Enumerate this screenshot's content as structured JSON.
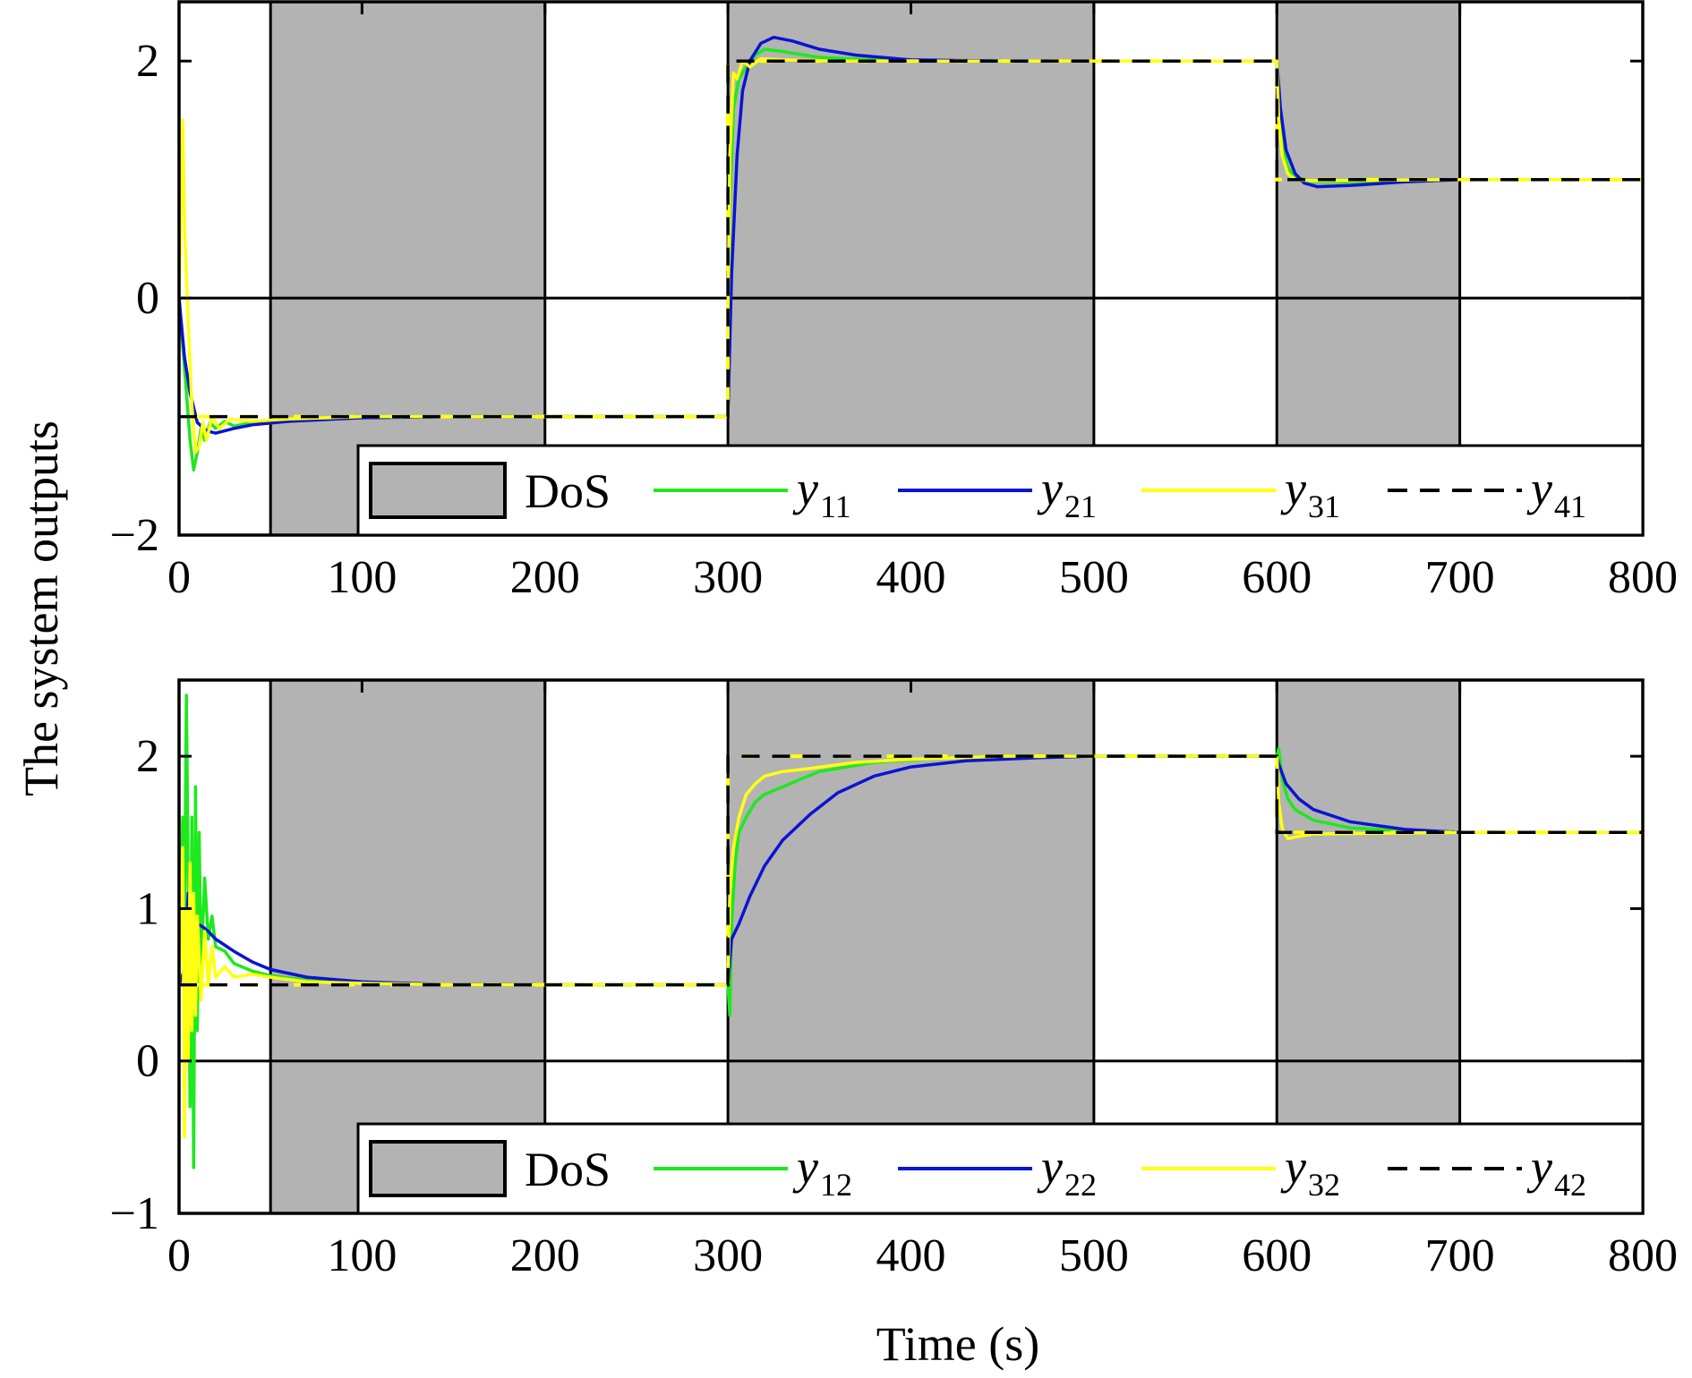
{
  "figure": {
    "ylabel": "The system outputs",
    "xlabel": "Time (s)"
  },
  "colors": {
    "dos_fill": "#b3b3b3",
    "green": "#1ee81e",
    "blue": "#0a14d2",
    "yellow": "#ffff14",
    "black": "#000000"
  },
  "chart_data": [
    {
      "type": "line",
      "panel": "top",
      "xlim": [
        0,
        800
      ],
      "ylim": [
        -2,
        2.5
      ],
      "xticks": [
        0,
        100,
        200,
        300,
        400,
        500,
        600,
        700,
        800
      ],
      "yticks": [
        -2,
        0,
        2
      ],
      "ytick_labels": [
        "−2",
        "0",
        "2"
      ],
      "zero_line": true,
      "dos_intervals": [
        [
          50,
          200
        ],
        [
          300,
          500
        ],
        [
          600,
          700
        ]
      ],
      "legend": {
        "placement": "bottom-right",
        "entries": [
          {
            "label": "DoS",
            "kind": "patch",
            "color_key": "dos_fill"
          },
          {
            "label": "y",
            "sub": "11",
            "kind": "line",
            "color_key": "green"
          },
          {
            "label": "y",
            "sub": "21",
            "kind": "line",
            "color_key": "blue"
          },
          {
            "label": "y",
            "sub": "31",
            "kind": "line",
            "color_key": "yellow"
          },
          {
            "label": "y",
            "sub": "41",
            "kind": "dashed",
            "color_key": "black"
          }
        ]
      },
      "series": [
        {
          "name": "y11",
          "color_key": "green",
          "points": [
            [
              0,
              0
            ],
            [
              2,
              -0.4
            ],
            [
              4,
              -0.8
            ],
            [
              6,
              -1.2
            ],
            [
              8,
              -1.45
            ],
            [
              10,
              -1.3
            ],
            [
              12,
              -1.1
            ],
            [
              14,
              -1.2
            ],
            [
              17,
              -1.05
            ],
            [
              20,
              -1.1
            ],
            [
              25,
              -1.04
            ],
            [
              30,
              -1.08
            ],
            [
              40,
              -1.05
            ],
            [
              60,
              -1.03
            ],
            [
              100,
              -1.01
            ],
            [
              150,
              -1.0
            ],
            [
              300,
              -1.0
            ],
            [
              300,
              -0.3
            ],
            [
              301,
              0.8
            ],
            [
              303,
              1.6
            ],
            [
              306,
              1.85
            ],
            [
              310,
              1.95
            ],
            [
              315,
              2.05
            ],
            [
              320,
              2.1
            ],
            [
              330,
              2.08
            ],
            [
              350,
              2.03
            ],
            [
              380,
              2.01
            ],
            [
              420,
              2.0
            ],
            [
              600,
              2.0
            ],
            [
              601,
              1.6
            ],
            [
              603,
              1.3
            ],
            [
              606,
              1.1
            ],
            [
              610,
              1.02
            ],
            [
              620,
              0.98
            ],
            [
              640,
              0.98
            ],
            [
              670,
              0.99
            ],
            [
              700,
              1.0
            ],
            [
              800,
              1.0
            ]
          ]
        },
        {
          "name": "y21",
          "color_key": "blue",
          "points": [
            [
              0,
              0
            ],
            [
              3,
              -0.5
            ],
            [
              6,
              -0.8
            ],
            [
              10,
              -1.05
            ],
            [
              15,
              -1.12
            ],
            [
              20,
              -1.14
            ],
            [
              30,
              -1.1
            ],
            [
              40,
              -1.07
            ],
            [
              60,
              -1.04
            ],
            [
              100,
              -1.01
            ],
            [
              150,
              -1.0
            ],
            [
              300,
              -1.0
            ],
            [
              302,
              0.2
            ],
            [
              305,
              1.2
            ],
            [
              308,
              1.75
            ],
            [
              312,
              2.0
            ],
            [
              318,
              2.15
            ],
            [
              325,
              2.2
            ],
            [
              335,
              2.17
            ],
            [
              350,
              2.1
            ],
            [
              370,
              2.05
            ],
            [
              400,
              2.01
            ],
            [
              450,
              2.0
            ],
            [
              600,
              2.0
            ],
            [
              602,
              1.6
            ],
            [
              605,
              1.25
            ],
            [
              610,
              1.05
            ],
            [
              615,
              0.97
            ],
            [
              622,
              0.94
            ],
            [
              640,
              0.95
            ],
            [
              670,
              0.98
            ],
            [
              700,
              1.0
            ],
            [
              800,
              1.0
            ]
          ]
        },
        {
          "name": "y31",
          "color_key": "yellow",
          "points": [
            [
              0,
              0
            ],
            [
              2,
              1.5
            ],
            [
              3,
              0.6
            ],
            [
              5,
              -0.2
            ],
            [
              7,
              -0.9
            ],
            [
              9,
              -1.3
            ],
            [
              11,
              -1.25
            ],
            [
              13,
              -1.05
            ],
            [
              15,
              -1.2
            ],
            [
              18,
              -1.0
            ],
            [
              22,
              -1.1
            ],
            [
              28,
              -1.02
            ],
            [
              40,
              -1.04
            ],
            [
              60,
              -1.02
            ],
            [
              100,
              -1.0
            ],
            [
              300,
              -1.0
            ],
            [
              300,
              -0.2
            ],
            [
              301,
              1.2
            ],
            [
              303,
              1.9
            ],
            [
              305,
              1.85
            ],
            [
              308,
              2.0
            ],
            [
              312,
              1.95
            ],
            [
              318,
              2.02
            ],
            [
              330,
              2.01
            ],
            [
              360,
              2.0
            ],
            [
              600,
              2.0
            ],
            [
              601,
              1.5
            ],
            [
              603,
              1.2
            ],
            [
              606,
              1.05
            ],
            [
              610,
              1.0
            ],
            [
              620,
              0.99
            ],
            [
              700,
              1.0
            ],
            [
              800,
              1.0
            ]
          ]
        },
        {
          "name": "y41",
          "color_key": "black",
          "dashed": true,
          "points": [
            [
              0,
              -1
            ],
            [
              300,
              -1
            ],
            [
              300,
              2
            ],
            [
              600,
              2
            ],
            [
              600,
              1
            ],
            [
              800,
              1
            ]
          ]
        }
      ]
    },
    {
      "type": "line",
      "panel": "bottom",
      "xlim": [
        0,
        800
      ],
      "ylim": [
        -1,
        2.5
      ],
      "xticks": [
        0,
        100,
        200,
        300,
        400,
        500,
        600,
        700,
        800
      ],
      "yticks": [
        -1,
        0,
        1,
        2
      ],
      "ytick_labels": [
        "−1",
        "0",
        "1",
        "2"
      ],
      "zero_line": true,
      "dos_intervals": [
        [
          50,
          200
        ],
        [
          300,
          500
        ],
        [
          600,
          700
        ]
      ],
      "legend": {
        "placement": "bottom-right",
        "entries": [
          {
            "label": "DoS",
            "kind": "patch",
            "color_key": "dos_fill"
          },
          {
            "label": "y",
            "sub": "12",
            "kind": "line",
            "color_key": "green"
          },
          {
            "label": "y",
            "sub": "22",
            "kind": "line",
            "color_key": "blue"
          },
          {
            "label": "y",
            "sub": "32",
            "kind": "line",
            "color_key": "yellow"
          },
          {
            "label": "y",
            "sub": "42",
            "kind": "dashed",
            "color_key": "black"
          }
        ]
      },
      "series": [
        {
          "name": "y12",
          "color_key": "green",
          "points": [
            [
              0,
              0.5
            ],
            [
              2,
              1.6
            ],
            [
              3,
              0.9
            ],
            [
              4,
              2.4
            ],
            [
              5,
              1.2
            ],
            [
              6,
              -0.3
            ],
            [
              7,
              1.6
            ],
            [
              8,
              -0.7
            ],
            [
              9,
              1.8
            ],
            [
              10,
              0.2
            ],
            [
              11,
              1.5
            ],
            [
              12,
              0.6
            ],
            [
              14,
              1.2
            ],
            [
              16,
              0.8
            ],
            [
              18,
              0.95
            ],
            [
              20,
              0.75
            ],
            [
              25,
              0.72
            ],
            [
              30,
              0.64
            ],
            [
              40,
              0.59
            ],
            [
              50,
              0.56
            ],
            [
              70,
              0.53
            ],
            [
              100,
              0.51
            ],
            [
              150,
              0.5
            ],
            [
              300,
              0.5
            ],
            [
              301,
              0.3
            ],
            [
              302,
              0.9
            ],
            [
              304,
              1.3
            ],
            [
              306,
              1.5
            ],
            [
              310,
              1.6
            ],
            [
              315,
              1.7
            ],
            [
              320,
              1.75
            ],
            [
              330,
              1.8
            ],
            [
              350,
              1.9
            ],
            [
              380,
              1.96
            ],
            [
              420,
              1.99
            ],
            [
              460,
              2.0
            ],
            [
              600,
              2.0
            ],
            [
              601,
              2.05
            ],
            [
              603,
              1.85
            ],
            [
              606,
              1.72
            ],
            [
              610,
              1.65
            ],
            [
              620,
              1.58
            ],
            [
              640,
              1.53
            ],
            [
              670,
              1.51
            ],
            [
              700,
              1.5
            ],
            [
              800,
              1.5
            ]
          ]
        },
        {
          "name": "y22",
          "color_key": "blue",
          "points": [
            [
              0,
              0.5
            ],
            [
              3,
              0.6
            ],
            [
              5,
              1.1
            ],
            [
              7,
              0.95
            ],
            [
              10,
              0.9
            ],
            [
              13,
              0.88
            ],
            [
              16,
              0.85
            ],
            [
              20,
              0.8
            ],
            [
              30,
              0.72
            ],
            [
              40,
              0.65
            ],
            [
              50,
              0.6
            ],
            [
              70,
              0.55
            ],
            [
              100,
              0.52
            ],
            [
              150,
              0.5
            ],
            [
              300,
              0.5
            ],
            [
              302,
              0.8
            ],
            [
              306,
              0.9
            ],
            [
              312,
              1.08
            ],
            [
              320,
              1.28
            ],
            [
              330,
              1.45
            ],
            [
              345,
              1.62
            ],
            [
              360,
              1.76
            ],
            [
              380,
              1.87
            ],
            [
              400,
              1.93
            ],
            [
              430,
              1.97
            ],
            [
              470,
              1.99
            ],
            [
              500,
              2.0
            ],
            [
              600,
              2.0
            ],
            [
              601,
              1.95
            ],
            [
              605,
              1.82
            ],
            [
              612,
              1.72
            ],
            [
              620,
              1.65
            ],
            [
              640,
              1.57
            ],
            [
              670,
              1.52
            ],
            [
              700,
              1.5
            ],
            [
              800,
              1.5
            ]
          ]
        },
        {
          "name": "y32",
          "color_key": "yellow",
          "points": [
            [
              0,
              0.5
            ],
            [
              2,
              1.4
            ],
            [
              3,
              -0.5
            ],
            [
              4,
              1.0
            ],
            [
              5,
              0.0
            ],
            [
              6,
              1.3
            ],
            [
              7,
              0.2
            ],
            [
              8,
              1.1
            ],
            [
              9,
              0.3
            ],
            [
              10,
              0.95
            ],
            [
              12,
              0.4
            ],
            [
              14,
              0.85
            ],
            [
              16,
              0.5
            ],
            [
              18,
              0.75
            ],
            [
              20,
              0.55
            ],
            [
              25,
              0.62
            ],
            [
              30,
              0.55
            ],
            [
              40,
              0.57
            ],
            [
              50,
              0.55
            ],
            [
              70,
              0.52
            ],
            [
              100,
              0.51
            ],
            [
              150,
              0.5
            ],
            [
              300,
              0.5
            ],
            [
              301,
              1.1
            ],
            [
              303,
              1.4
            ],
            [
              306,
              1.6
            ],
            [
              310,
              1.75
            ],
            [
              315,
              1.82
            ],
            [
              320,
              1.87
            ],
            [
              330,
              1.9
            ],
            [
              345,
              1.92
            ],
            [
              370,
              1.96
            ],
            [
              400,
              1.98
            ],
            [
              450,
              2.0
            ],
            [
              600,
              2.0
            ],
            [
              601,
              1.7
            ],
            [
              603,
              1.52
            ],
            [
              606,
              1.46
            ],
            [
              610,
              1.47
            ],
            [
              620,
              1.49
            ],
            [
              700,
              1.5
            ],
            [
              800,
              1.5
            ]
          ]
        },
        {
          "name": "y42",
          "color_key": "black",
          "dashed": true,
          "points": [
            [
              0,
              0.5
            ],
            [
              300,
              0.5
            ],
            [
              300,
              2
            ],
            [
              600,
              2
            ],
            [
              600,
              1.5
            ],
            [
              800,
              1.5
            ]
          ]
        }
      ]
    }
  ]
}
